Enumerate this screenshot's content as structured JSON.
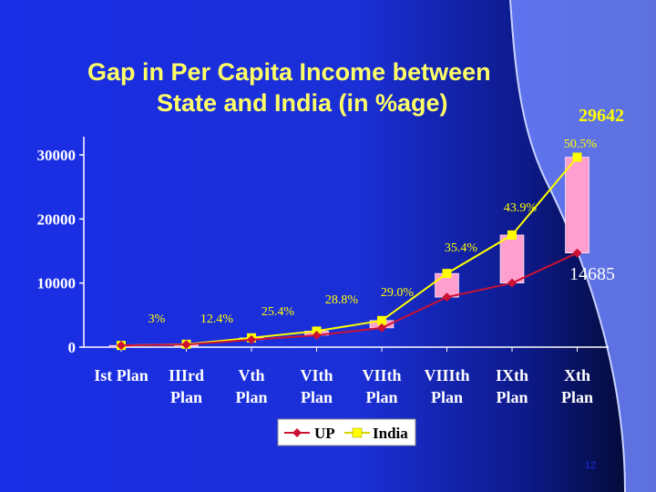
{
  "title": {
    "line1": "Gap in Per Capita Income between",
    "line2": "State and India (in %age)"
  },
  "page_number": "12",
  "colors": {
    "background": "#1a2ee6",
    "title": "#ffff66",
    "axis_text": "#ffffff",
    "annotation": "#ffff00",
    "gap_bar": "#ff9fcf",
    "up_series": "#cc1133",
    "india_series": "#ffff00",
    "curve_band": "#6d84ff"
  },
  "chart_data": {
    "type": "line",
    "categories": [
      [
        "Ist Plan"
      ],
      [
        "IIIrd",
        "Plan"
      ],
      [
        "Vth",
        "Plan"
      ],
      [
        "VIth",
        "Plan"
      ],
      [
        "VIIth",
        "Plan"
      ],
      [
        "VIIIth",
        "Plan"
      ],
      [
        "IXth",
        "Plan"
      ],
      [
        "Xth",
        "Plan"
      ]
    ],
    "series": [
      {
        "name": "UP",
        "values": [
          260,
          400,
          1150,
          1850,
          3000,
          7800,
          10000,
          14685
        ],
        "color": "#cc1133",
        "marker": "diamond"
      },
      {
        "name": "India",
        "values": [
          265,
          450,
          1450,
          2500,
          4150,
          11500,
          17500,
          29642
        ],
        "color": "#ffff00",
        "marker": "square"
      }
    ],
    "gap_labels": [
      "3%",
      "12.4%",
      "25.4%",
      "28.8%",
      "29.0%",
      "35.4%",
      "43.9%",
      "50.5%"
    ],
    "value_labels": {
      "india_last": "29642",
      "up_last": "14685"
    },
    "y_ticks": [
      0,
      10000,
      20000,
      30000
    ],
    "ylim": [
      0,
      30000
    ],
    "grid": false,
    "legend": {
      "placement": "bottom-center",
      "entries": [
        "UP",
        "India"
      ]
    }
  }
}
